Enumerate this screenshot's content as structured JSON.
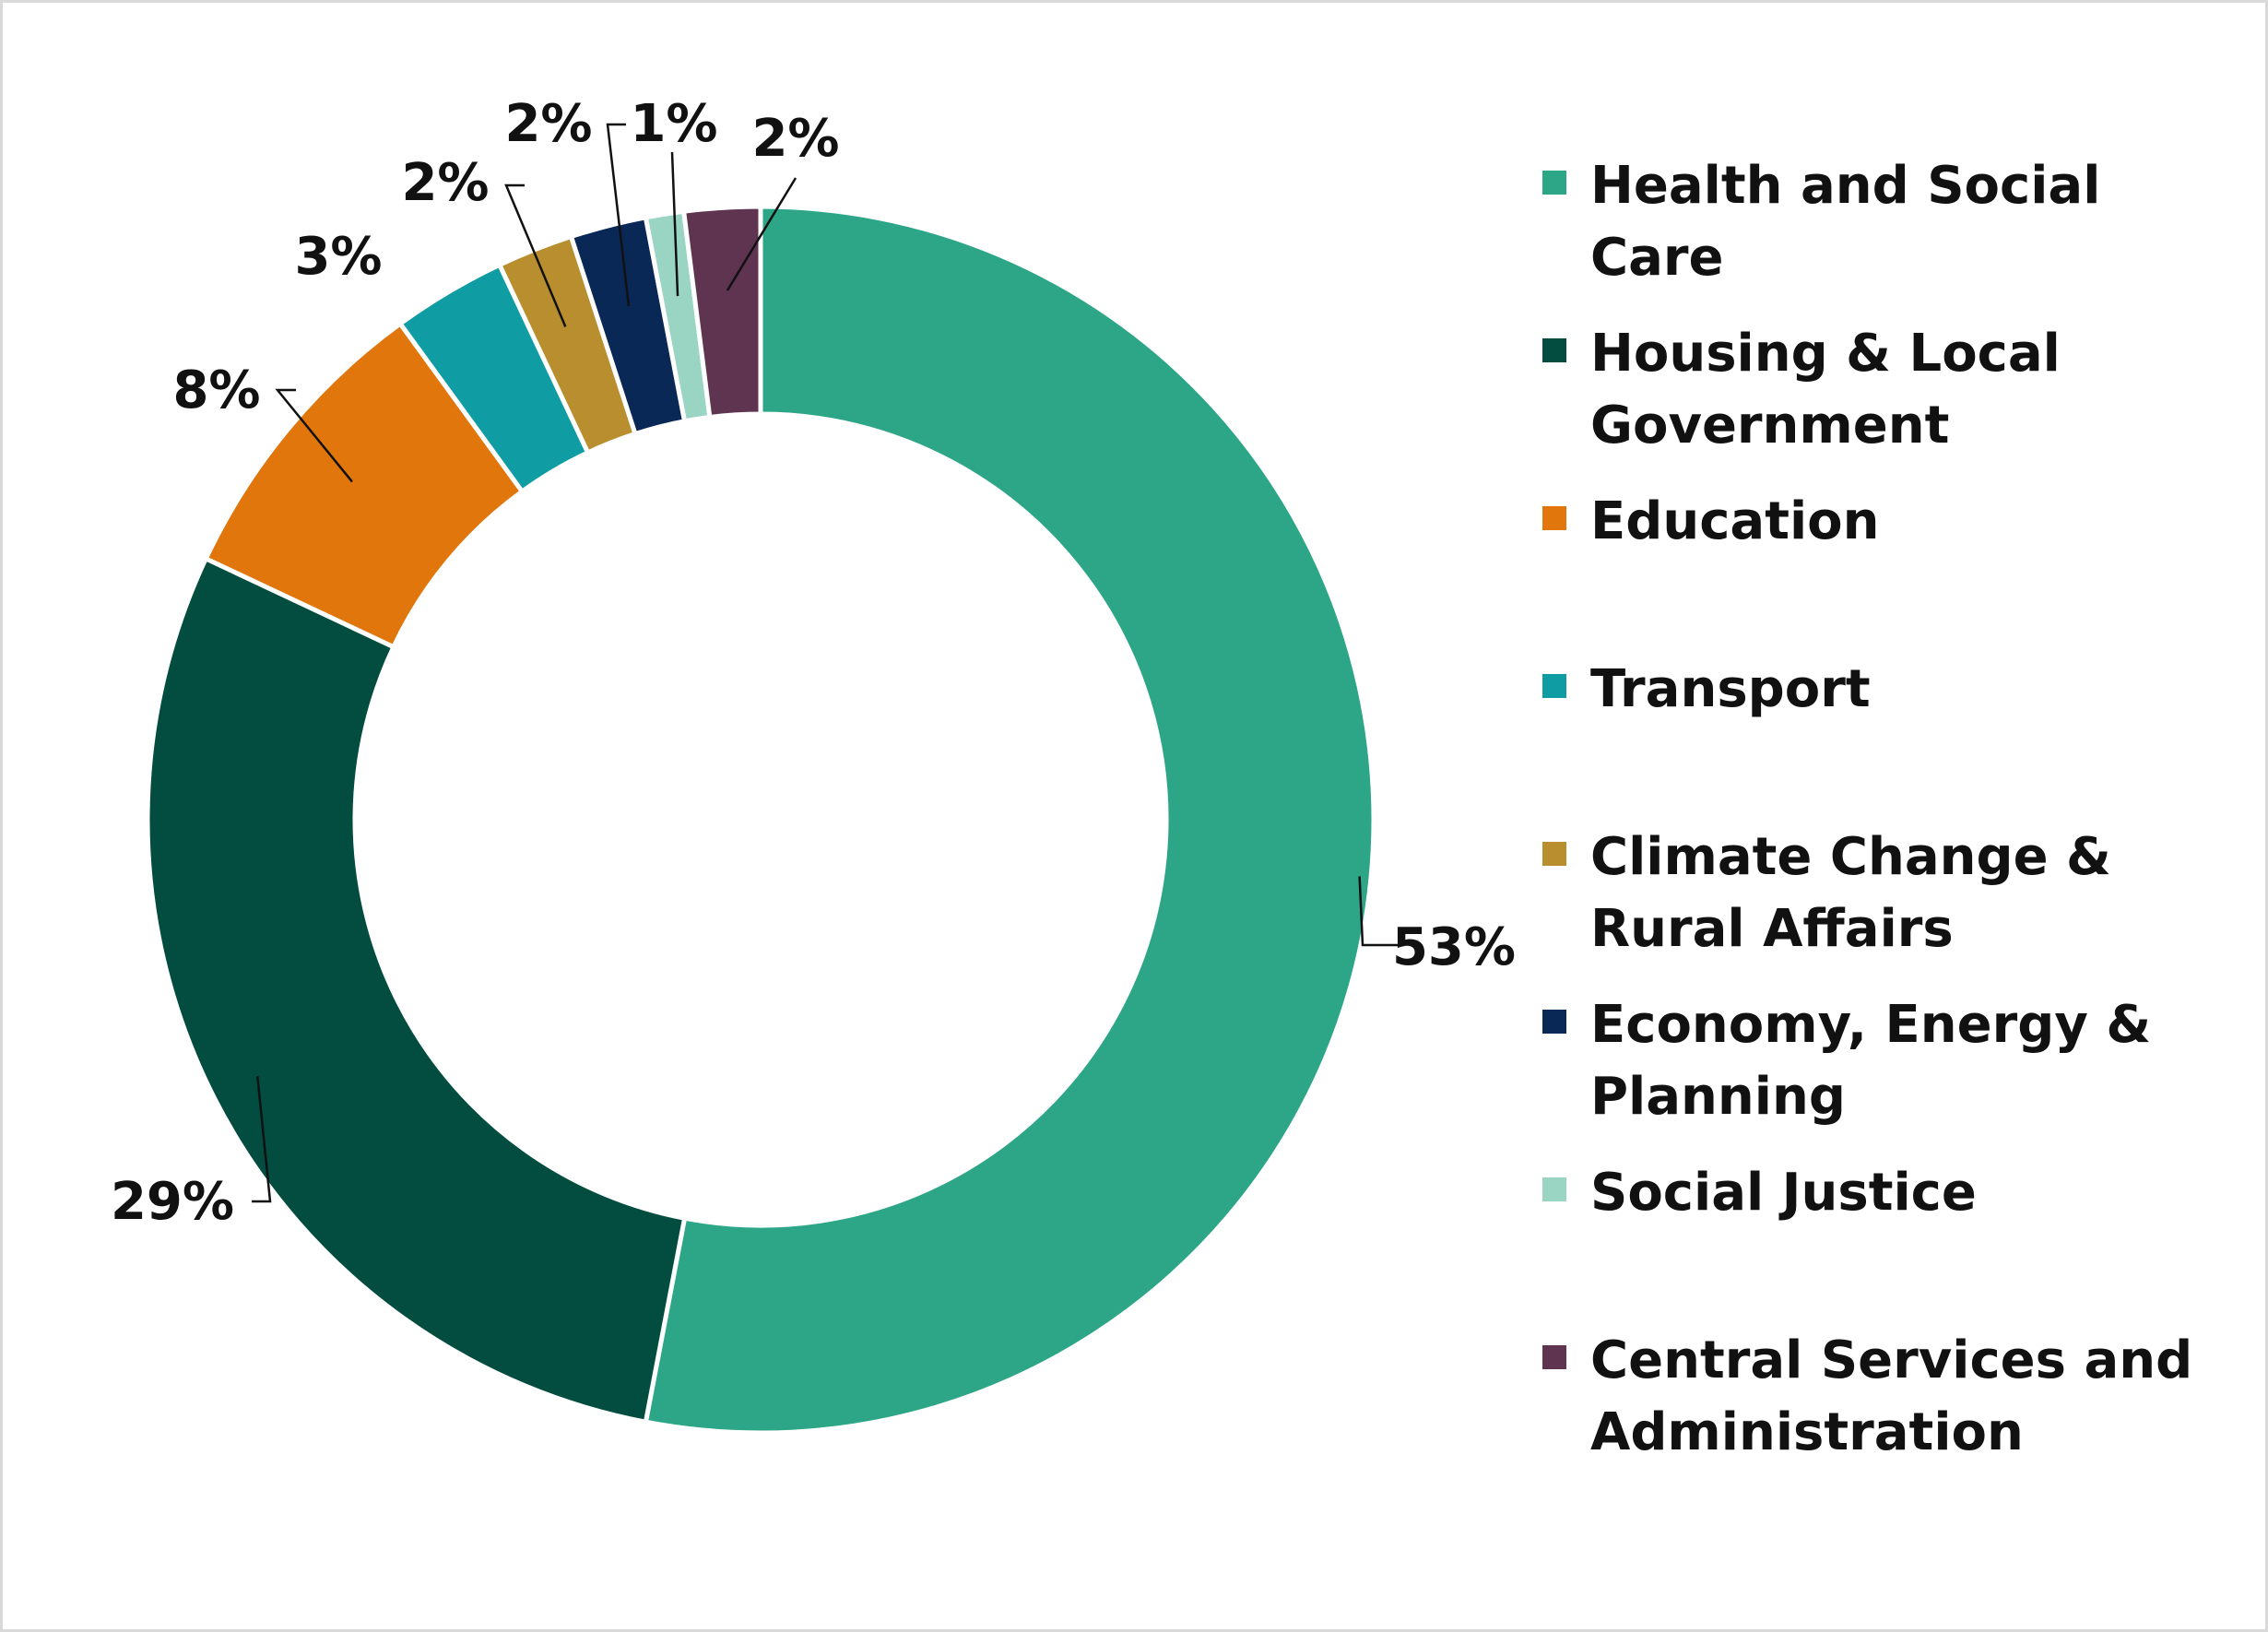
{
  "chart_data": {
    "type": "donut",
    "categories": [
      "Health and Social Care",
      "Housing & Local Government",
      "Education",
      "Transport",
      "Climate Change & Rural Affairs",
      "Economy, Energy & Planning",
      "Social Justice",
      "Central Services and Administration"
    ],
    "values": [
      53,
      29,
      8,
      3,
      2,
      2,
      1,
      2
    ],
    "value_labels": [
      "53%",
      "29%",
      "8%",
      "3%",
      "2%",
      "2%",
      "1%",
      "2%"
    ],
    "colors": [
      "#2ca687",
      "#024d40",
      "#e0760c",
      "#0f9ca3",
      "#b98e2e",
      "#0a2856",
      "#9ad5c4",
      "#5e3450"
    ],
    "legend": "right"
  }
}
